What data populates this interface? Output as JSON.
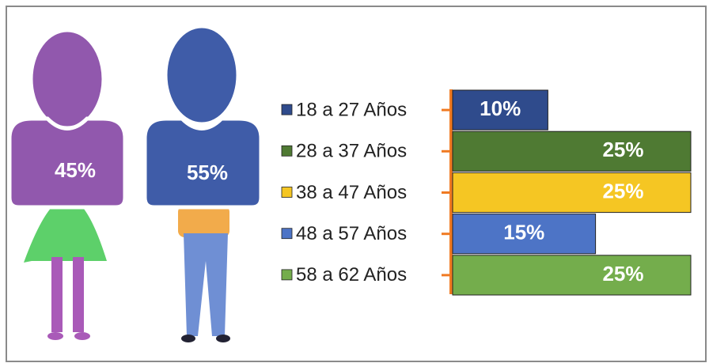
{
  "chart_data": [
    {
      "type": "pictogram",
      "values": [
        45,
        55
      ],
      "value_labels": [
        "45%",
        "55%"
      ],
      "colors": [
        "#9158ad",
        "#3f5ca8"
      ]
    },
    {
      "type": "bar",
      "categories": [
        "18 a 27 Años",
        "28 a 37 Años",
        "38 a 47 Años",
        "48 a 57 Años",
        "58 a 62 Años"
      ],
      "values": [
        10,
        25,
        25,
        15,
        25
      ],
      "value_labels": [
        "10%",
        "25%",
        "25%",
        "15%",
        "25%"
      ],
      "colors": [
        "#2f4b8c",
        "#4f7a33",
        "#f5c623",
        "#4d74c6",
        "#74ad4c"
      ]
    }
  ]
}
